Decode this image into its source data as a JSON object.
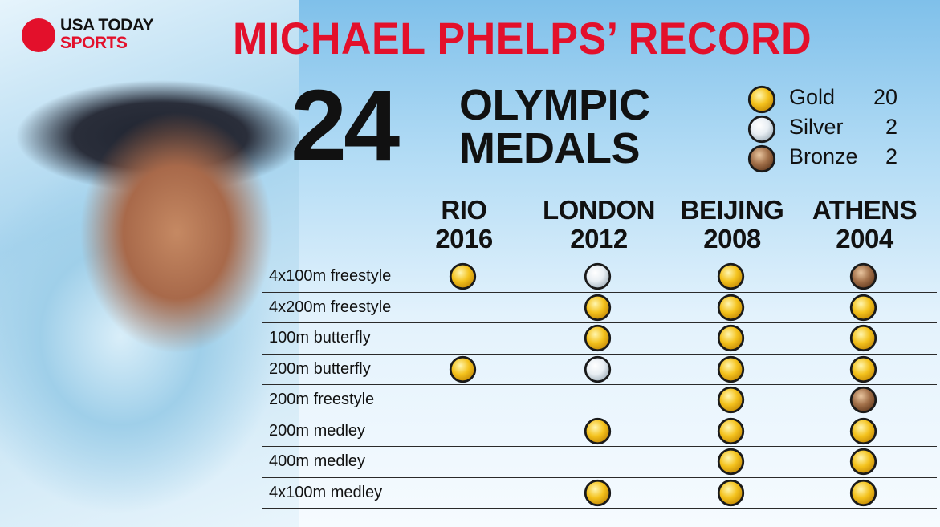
{
  "logo": {
    "line1": "USA TODAY",
    "line2": "SPORTS"
  },
  "title": "MICHAEL PHELPS’ RECORD",
  "total": {
    "number": "24",
    "line1": "OLYMPIC",
    "line2": "MEDALS"
  },
  "legend": [
    {
      "medal": "gold",
      "label": "Gold",
      "count": "20"
    },
    {
      "medal": "silver",
      "label": "Silver",
      "count": "2"
    },
    {
      "medal": "bronze",
      "label": "Bronze",
      "count": "2"
    }
  ],
  "colors": {
    "headline": "#e3102b",
    "gold": "#f4c21d",
    "silver": "#e8eef3",
    "bronze": "#a3714a"
  },
  "chart_data": {
    "type": "table",
    "title": "MICHAEL PHELPS’ RECORD",
    "columns": [
      {
        "name": "RIO",
        "year": "2016"
      },
      {
        "name": "LONDON",
        "year": "2012"
      },
      {
        "name": "BEIJING",
        "year": "2008"
      },
      {
        "name": "ATHENS",
        "year": "2004"
      }
    ],
    "rows": [
      {
        "event": "4x100m freestyle",
        "medals": [
          "gold",
          "silver",
          "gold",
          "bronze"
        ]
      },
      {
        "event": "4x200m freestyle",
        "medals": [
          null,
          "gold",
          "gold",
          "gold"
        ]
      },
      {
        "event": "100m butterfly",
        "medals": [
          null,
          "gold",
          "gold",
          "gold"
        ]
      },
      {
        "event": "200m butterfly",
        "medals": [
          "gold",
          "silver",
          "gold",
          "gold"
        ]
      },
      {
        "event": "200m freestyle",
        "medals": [
          null,
          null,
          "gold",
          "bronze"
        ]
      },
      {
        "event": "200m medley",
        "medals": [
          null,
          "gold",
          "gold",
          "gold"
        ]
      },
      {
        "event": "400m medley",
        "medals": [
          null,
          null,
          "gold",
          "gold"
        ]
      },
      {
        "event": "4x100m medley",
        "medals": [
          null,
          "gold",
          "gold",
          "gold"
        ]
      }
    ],
    "totals": {
      "gold": 20,
      "silver": 2,
      "bronze": 2,
      "all": 24
    }
  }
}
